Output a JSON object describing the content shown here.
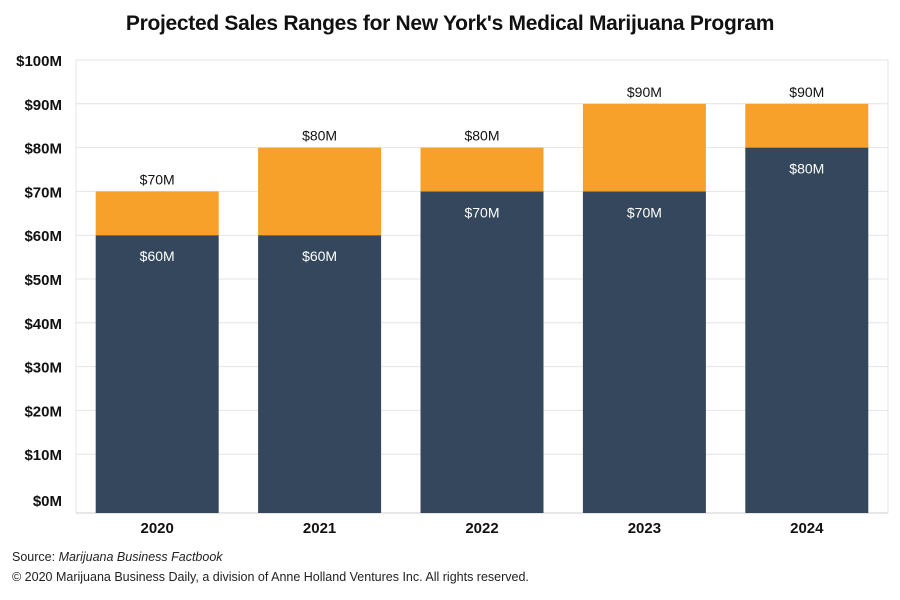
{
  "title": "Projected Sales Ranges for New York's Medical Marijuana Program",
  "footer": {
    "source_label": "Source: ",
    "source_name": "Marijuana Business Factbook",
    "copyright": "© 2020 Marijuana Business Daily, a division of Anne Holland Ventures Inc. All rights reserved."
  },
  "colors": {
    "low": "#34475c",
    "range": "#f7a02a",
    "grid": "#e4e4e4"
  },
  "chart_data": {
    "type": "bar",
    "stacked": true,
    "categories": [
      "2020",
      "2021",
      "2022",
      "2023",
      "2024"
    ],
    "series": [
      {
        "values": [
          60,
          60,
          70,
          70,
          80
        ]
      },
      {
        "values": [
          10,
          20,
          10,
          20,
          10
        ]
      }
    ],
    "low_labels": [
      "$60M",
      "$60M",
      "$70M",
      "$70M",
      "$80M"
    ],
    "high_labels": [
      "$70M",
      "$80M",
      "$80M",
      "$90M",
      "$90M"
    ],
    "y_ticks": [
      "$0M",
      "$10M",
      "$20M",
      "$30M",
      "$40M",
      "$50M",
      "$60M",
      "$70M",
      "$80M",
      "$90M",
      "$100M"
    ],
    "ylim": [
      0,
      100
    ],
    "grid": true,
    "legend": false
  }
}
